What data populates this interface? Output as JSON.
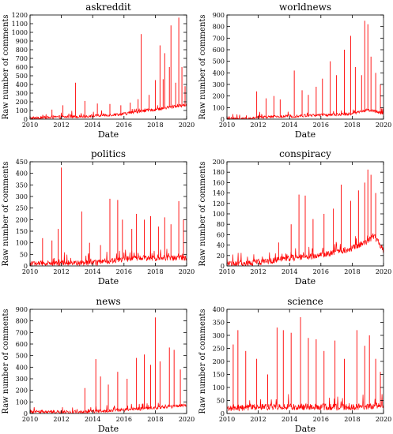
{
  "chart_data": [
    {
      "type": "line",
      "title": "askreddit",
      "xlabel": "Date",
      "ylabel": "Raw number of comments",
      "xlim": [
        2010,
        2020
      ],
      "ylim": [
        0,
        1200
      ],
      "xticks": [
        2010,
        2012,
        2014,
        2016,
        2018,
        2020
      ],
      "yticks": [
        0,
        100,
        200,
        300,
        400,
        500,
        600,
        700,
        800,
        900,
        1000,
        1100,
        1200
      ],
      "series_color": "#ff0000",
      "base_profile": [
        [
          2010,
          10
        ],
        [
          2012,
          25
        ],
        [
          2014,
          35
        ],
        [
          2016,
          60
        ],
        [
          2017,
          90
        ],
        [
          2018,
          110
        ],
        [
          2019,
          140
        ],
        [
          2020,
          165
        ]
      ],
      "noise": 35,
      "spikes": [
        [
          2011.4,
          110
        ],
        [
          2012.1,
          160
        ],
        [
          2012.9,
          420
        ],
        [
          2013.5,
          210
        ],
        [
          2014.3,
          180
        ],
        [
          2015.1,
          175
        ],
        [
          2015.8,
          160
        ],
        [
          2016.4,
          190
        ],
        [
          2016.9,
          230
        ],
        [
          2017.1,
          980
        ],
        [
          2017.6,
          280
        ],
        [
          2018.0,
          450
        ],
        [
          2018.3,
          850
        ],
        [
          2018.5,
          460
        ],
        [
          2018.6,
          760
        ],
        [
          2018.9,
          600
        ],
        [
          2019.0,
          1080
        ],
        [
          2019.3,
          420
        ],
        [
          2019.5,
          1170
        ],
        [
          2019.7,
          600
        ],
        [
          2019.9,
          380
        ]
      ]
    },
    {
      "type": "line",
      "title": "worldnews",
      "xlabel": "Date",
      "ylabel": "Raw number of comments",
      "xlim": [
        2010,
        2020
      ],
      "ylim": [
        0,
        900
      ],
      "xticks": [
        2010,
        2012,
        2014,
        2016,
        2018,
        2020
      ],
      "yticks": [
        0,
        100,
        200,
        300,
        400,
        500,
        600,
        700,
        800,
        900
      ],
      "series_color": "#ff0000",
      "base_profile": [
        [
          2010,
          3
        ],
        [
          2011.5,
          5
        ],
        [
          2012,
          15
        ],
        [
          2014,
          25
        ],
        [
          2016,
          35
        ],
        [
          2018,
          45
        ],
        [
          2019,
          80
        ],
        [
          2020,
          50
        ]
      ],
      "noise": 25,
      "spikes": [
        [
          2011.9,
          240
        ],
        [
          2012.5,
          180
        ],
        [
          2013.0,
          200
        ],
        [
          2013.4,
          170
        ],
        [
          2014.3,
          420
        ],
        [
          2014.8,
          250
        ],
        [
          2015.2,
          210
        ],
        [
          2015.7,
          280
        ],
        [
          2016.1,
          350
        ],
        [
          2016.6,
          500
        ],
        [
          2017.0,
          380
        ],
        [
          2017.5,
          600
        ],
        [
          2017.9,
          720
        ],
        [
          2018.2,
          450
        ],
        [
          2018.6,
          380
        ],
        [
          2018.8,
          850
        ],
        [
          2019.0,
          820
        ],
        [
          2019.2,
          540
        ],
        [
          2019.5,
          400
        ],
        [
          2019.8,
          300
        ]
      ]
    },
    {
      "type": "line",
      "title": "politics",
      "xlabel": "Date",
      "ylabel": "Raw number of comments",
      "xlim": [
        2010,
        2020
      ],
      "ylim": [
        0,
        450
      ],
      "xticks": [
        2010,
        2012,
        2014,
        2016,
        2018,
        2020
      ],
      "yticks": [
        0,
        50,
        100,
        150,
        200,
        250,
        300,
        350,
        400,
        450
      ],
      "series_color": "#ff0000",
      "base_profile": [
        [
          2010,
          10
        ],
        [
          2012,
          12
        ],
        [
          2014,
          12
        ],
        [
          2015,
          20
        ],
        [
          2016,
          30
        ],
        [
          2018,
          35
        ],
        [
          2020,
          35
        ]
      ],
      "noise": 25,
      "spikes": [
        [
          2010.8,
          120
        ],
        [
          2011.4,
          110
        ],
        [
          2011.8,
          160
        ],
        [
          2012.0,
          425
        ],
        [
          2013.3,
          235
        ],
        [
          2013.8,
          100
        ],
        [
          2014.5,
          90
        ],
        [
          2015.1,
          290
        ],
        [
          2015.6,
          285
        ],
        [
          2015.9,
          200
        ],
        [
          2016.5,
          160
        ],
        [
          2016.8,
          225
        ],
        [
          2017.3,
          200
        ],
        [
          2017.7,
          215
        ],
        [
          2018.2,
          170
        ],
        [
          2018.6,
          210
        ],
        [
          2019.0,
          180
        ],
        [
          2019.5,
          280
        ],
        [
          2019.8,
          200
        ]
      ]
    },
    {
      "type": "line",
      "title": "conspiracy",
      "xlabel": "Date",
      "ylabel": "Raw number of comments",
      "xlim": [
        2010,
        2020
      ],
      "ylim": [
        0,
        200
      ],
      "xticks": [
        2010,
        2012,
        2014,
        2016,
        2018,
        2020
      ],
      "yticks": [
        0,
        20,
        40,
        60,
        80,
        100,
        120,
        140,
        160,
        180,
        200
      ],
      "series_color": "#ff0000",
      "base_profile": [
        [
          2010,
          2
        ],
        [
          2011,
          4
        ],
        [
          2012,
          7
        ],
        [
          2013,
          11
        ],
        [
          2014,
          15
        ],
        [
          2015,
          17
        ],
        [
          2016,
          21
        ],
        [
          2017,
          26
        ],
        [
          2018,
          34
        ],
        [
          2019,
          48
        ],
        [
          2019.4,
          58
        ],
        [
          2020,
          30
        ]
      ],
      "noise": 12,
      "spikes": [
        [
          2013.3,
          45
        ],
        [
          2014.1,
          80
        ],
        [
          2014.6,
          137
        ],
        [
          2015.0,
          135
        ],
        [
          2015.5,
          90
        ],
        [
          2016.2,
          100
        ],
        [
          2016.8,
          110
        ],
        [
          2017.3,
          156
        ],
        [
          2017.9,
          125
        ],
        [
          2018.4,
          145
        ],
        [
          2018.8,
          160
        ],
        [
          2019.0,
          185
        ],
        [
          2019.2,
          175
        ],
        [
          2019.5,
          140
        ]
      ]
    },
    {
      "type": "line",
      "title": "news",
      "xlabel": "Date",
      "ylabel": "Raw number of comments",
      "xlim": [
        2010,
        2020
      ],
      "ylim": [
        0,
        900
      ],
      "xticks": [
        2010,
        2012,
        2014,
        2016,
        2018,
        2020
      ],
      "yticks": [
        0,
        100,
        200,
        300,
        400,
        500,
        600,
        700,
        800,
        900
      ],
      "series_color": "#ff0000",
      "base_profile": [
        [
          2010,
          15
        ],
        [
          2013,
          8
        ],
        [
          2014,
          20
        ],
        [
          2016,
          30
        ],
        [
          2018,
          50
        ],
        [
          2020,
          70
        ]
      ],
      "noise": 30,
      "spikes": [
        [
          2011.5,
          30
        ],
        [
          2013.5,
          220
        ],
        [
          2014.2,
          470
        ],
        [
          2014.5,
          320
        ],
        [
          2015.0,
          250
        ],
        [
          2015.6,
          360
        ],
        [
          2016.2,
          300
        ],
        [
          2016.8,
          480
        ],
        [
          2017.3,
          510
        ],
        [
          2017.7,
          420
        ],
        [
          2018.0,
          830
        ],
        [
          2018.3,
          450
        ],
        [
          2018.9,
          570
        ],
        [
          2019.2,
          550
        ],
        [
          2019.6,
          380
        ]
      ]
    },
    {
      "type": "line",
      "title": "science",
      "xlabel": "Date",
      "ylabel": "Raw number of comments",
      "xlim": [
        2010,
        2020
      ],
      "ylim": [
        0,
        400
      ],
      "xticks": [
        2010,
        2012,
        2014,
        2016,
        2018,
        2020
      ],
      "yticks": [
        0,
        50,
        100,
        150,
        200,
        250,
        300,
        350,
        400
      ],
      "series_color": "#ff0000",
      "base_profile": [
        [
          2010,
          20
        ],
        [
          2012,
          25
        ],
        [
          2014,
          25
        ],
        [
          2016,
          25
        ],
        [
          2018,
          25
        ],
        [
          2020,
          30
        ]
      ],
      "noise": 25,
      "spikes": [
        [
          2010.4,
          265
        ],
        [
          2010.7,
          320
        ],
        [
          2011.2,
          240
        ],
        [
          2011.9,
          210
        ],
        [
          2012.6,
          150
        ],
        [
          2013.2,
          330
        ],
        [
          2013.6,
          320
        ],
        [
          2014.1,
          310
        ],
        [
          2014.7,
          370
        ],
        [
          2015.2,
          290
        ],
        [
          2015.7,
          285
        ],
        [
          2016.2,
          240
        ],
        [
          2016.9,
          280
        ],
        [
          2017.5,
          210
        ],
        [
          2018.3,
          320
        ],
        [
          2018.8,
          260
        ],
        [
          2019.1,
          300
        ],
        [
          2019.5,
          210
        ],
        [
          2019.8,
          160
        ]
      ]
    }
  ]
}
